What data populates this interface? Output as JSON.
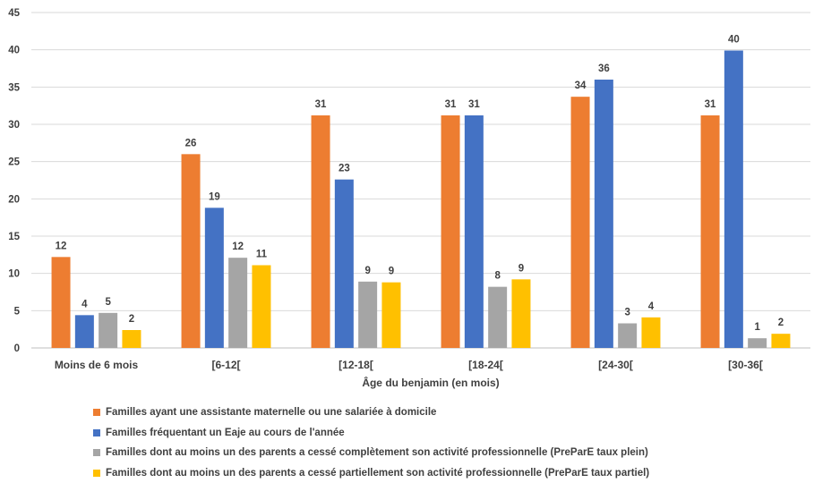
{
  "chart_data": {
    "type": "bar",
    "xlabel": "Âge du benjamin (en mois)",
    "ylabel": "",
    "ylim": [
      0,
      45
    ],
    "yticks": [
      0,
      5,
      10,
      15,
      20,
      25,
      30,
      35,
      40,
      45
    ],
    "grid": true,
    "legend_position": "bottom",
    "categories": [
      "Moins de 6 mois",
      "[6-12[",
      "[12-18[",
      "[18-24[",
      "[24-30[",
      "[30-36["
    ],
    "series": [
      {
        "name": "Familles ayant une assistante maternelle ou une salariée à domicile",
        "color": "#ED7D31",
        "values": [
          12.2,
          26,
          31.2,
          31.2,
          33.7,
          31.2
        ],
        "labels": [
          "12",
          "26",
          "31",
          "31",
          "34",
          "31"
        ]
      },
      {
        "name": "Familles fréquentant un Eaje au cours de l'année",
        "color": "#4472C4",
        "values": [
          4.4,
          18.8,
          22.6,
          31.2,
          36,
          39.9
        ],
        "labels": [
          "4",
          "19",
          "23",
          "31",
          "36",
          "40"
        ]
      },
      {
        "name": "Familles dont au moins un des parents a cessé complètement son activité professionnelle (PreParE taux plein)",
        "color": "#A5A5A5",
        "values": [
          4.7,
          12.1,
          8.9,
          8.2,
          3.3,
          1.3
        ],
        "labels": [
          "5",
          "12",
          "9",
          "8",
          "3",
          "1"
        ]
      },
      {
        "name": "Familles dont au moins un des parents a cessé partiellement son activité professionnelle (PreParE taux partiel)",
        "color": "#FFC000",
        "values": [
          2.4,
          11.1,
          8.8,
          9.2,
          4.1,
          1.9
        ],
        "labels": [
          "2",
          "11",
          "9",
          "9",
          "4",
          "2"
        ]
      }
    ]
  }
}
